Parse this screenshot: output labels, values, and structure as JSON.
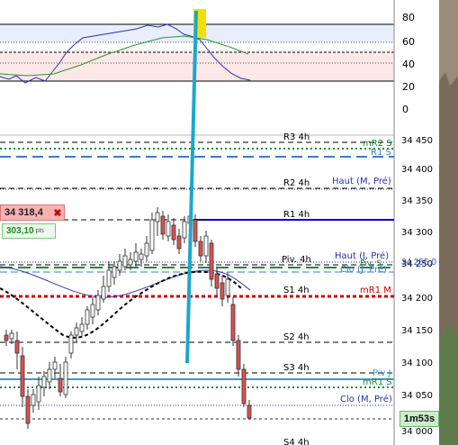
{
  "oscillator": {
    "ticks": [
      "80",
      "60",
      "40",
      "20",
      "0"
    ]
  },
  "price_axis": {
    "ticks": [
      "34 450",
      "34 400",
      "34 350",
      "34 300",
      "34 250",
      "34 200",
      "34 150",
      "34 100",
      "34 050",
      "34 000"
    ],
    "current_tag": "34 255,0",
    "timer": "1m53s"
  },
  "levels": {
    "r3": "R3 4h",
    "r2": "R2 4h",
    "r1": "R1 4h",
    "piv": "Piv. 4h",
    "s1": "S1 4h",
    "s2": "S2 4h",
    "s3": "S3 4h",
    "s4": "S4 4h",
    "mr2s": "mR2 S",
    "r1s": "R1 S",
    "haut_m": "Haut (M, Pré)",
    "haut_j": "Haut (J, Pré)",
    "piv_s": "Piv. S",
    "clo_j": "Clo (J, Pré)",
    "mr1m": "mR1 M",
    "piv_j": "Piv J",
    "mr1s": "mR1 S",
    "clo_m": "Clo (M, Pré)"
  },
  "order": {
    "price": "34 318,4",
    "close_glyph": "✖",
    "pnl": "303,10",
    "pnl_unit": "pts"
  },
  "colors": {
    "pivot_blue": "#0000cc",
    "green_dotted": "#1a8a3a",
    "red_dotted": "#cc0000",
    "cyan_line": "#1aa8cc",
    "yellow_marker": "#f4e000",
    "up_candle": "#ffffff",
    "down_candle": "#e05050"
  }
}
